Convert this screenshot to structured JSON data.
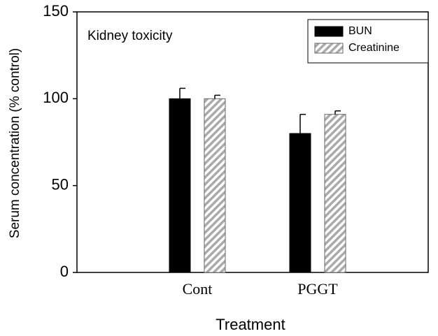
{
  "chart_data": {
    "type": "bar",
    "annotation": "Kidney toxicity",
    "x_label": "Treatment",
    "y_label": "Serum concentration (% control)",
    "categories": [
      "Cont",
      "PGGT"
    ],
    "series": [
      {
        "name": "BUN",
        "color": "#000000",
        "pattern": "solid",
        "values": [
          100,
          80
        ],
        "errors": [
          6,
          11
        ]
      },
      {
        "name": "Creatinine",
        "color": "#aaaaaa",
        "pattern": "hatch",
        "values": [
          100,
          91
        ],
        "errors": [
          2,
          2
        ]
      }
    ],
    "ylim": [
      0,
      150
    ],
    "yticks": [
      0,
      50,
      100,
      150
    ],
    "grid": false,
    "legend": "upper right"
  }
}
